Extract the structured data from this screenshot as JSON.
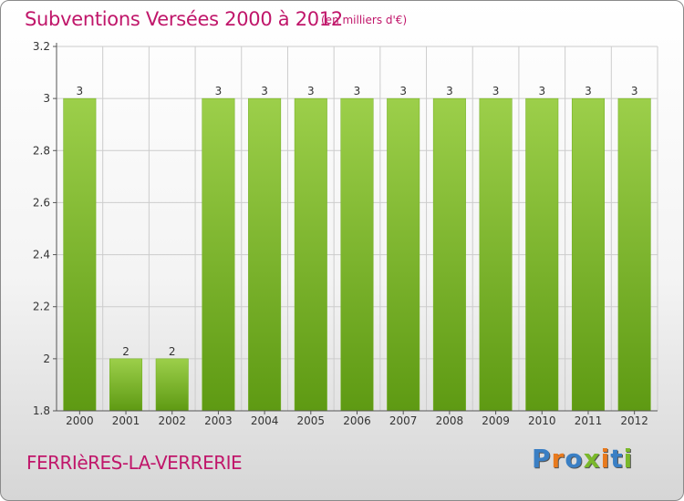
{
  "chart_data": {
    "type": "bar",
    "title": "Subventions Versées 2000 à 2012",
    "unit_note": "(en milliers d'€)",
    "categories": [
      "2000",
      "2001",
      "2002",
      "2003",
      "2004",
      "2005",
      "2006",
      "2007",
      "2008",
      "2009",
      "2010",
      "2011",
      "2012"
    ],
    "values": [
      3,
      2,
      2,
      3,
      3,
      3,
      3,
      3,
      3,
      3,
      3,
      3,
      3
    ],
    "data_labels": [
      "3",
      "2",
      "2",
      "3",
      "3",
      "3",
      "3",
      "3",
      "3",
      "3",
      "3",
      "3",
      "3"
    ],
    "ylim": [
      1.8,
      3.2
    ],
    "yticks": [
      1.8,
      2,
      2.2,
      2.4,
      2.6,
      2.8,
      3,
      3.2
    ],
    "ytick_labels": [
      "1.8",
      "2",
      "2.2",
      "2.4",
      "2.6",
      "2.8",
      "3",
      "3.2"
    ],
    "xlabel": "",
    "ylabel": "",
    "grid": true,
    "bar_color_top": "#9ccf4a",
    "bar_color_bottom": "#5e9a13",
    "grid_color": "#cccccc"
  },
  "footer": {
    "town": "FERRIèRES-LA-VERRERIE",
    "logo_letters": [
      "P",
      "r",
      "o",
      "x",
      "i",
      "t",
      "i"
    ],
    "logo_colors": [
      "#3a7fc4",
      "#e87a1e",
      "#3a7fc4",
      "#7ab82b",
      "#e87a1e",
      "#3a7fc4",
      "#7ab82b"
    ]
  },
  "colors": {
    "accent": "#c0166a"
  }
}
